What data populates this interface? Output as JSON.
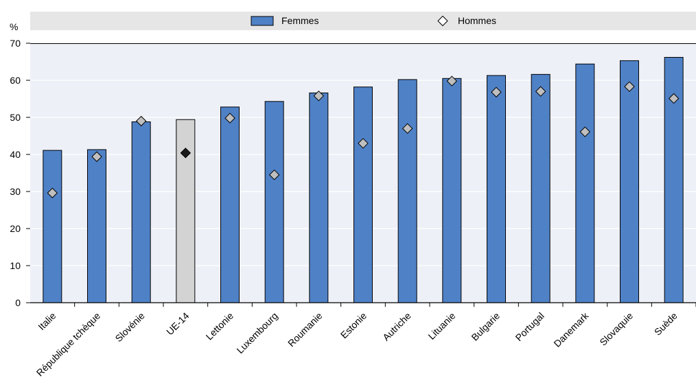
{
  "chart_data": {
    "type": "bar",
    "title": "",
    "xlabel": "",
    "ylabel": "%",
    "ylim": [
      0,
      70
    ],
    "yticks": [
      0,
      10,
      20,
      30,
      40,
      50,
      60,
      70
    ],
    "grid": "horizontal",
    "legend_position": "top",
    "categories": [
      "Italie",
      "République tchèque",
      "Slovénie",
      "UE-14",
      "Lettonie",
      "Luxembourg",
      "Roumanie",
      "Estonie",
      "Autriche",
      "Lituanie",
      "Bulgarie",
      "Portugal",
      "Danemark",
      "Slovaquie",
      "Suède"
    ],
    "highlight_category": "UE-14",
    "series": [
      {
        "name": "Femmes",
        "kind": "bar",
        "values": [
          41.1,
          41.3,
          48.8,
          49.4,
          52.8,
          54.3,
          56.6,
          58.2,
          60.2,
          60.5,
          61.3,
          61.6,
          64.4,
          65.3,
          66.2
        ]
      },
      {
        "name": "Hommes",
        "kind": "marker",
        "values": [
          29.6,
          39.4,
          49.0,
          40.4,
          49.8,
          34.5,
          55.8,
          43.0,
          47.0,
          59.8,
          56.8,
          57.0,
          46.1,
          58.3,
          55.1
        ]
      }
    ],
    "colors": {
      "bar": "#4f81c6",
      "bar_highlight": "#d3d3d3",
      "marker": "#bfbfbf",
      "marker_highlight": "#1a1a1a",
      "plot_bg": "#eef0f8",
      "legend_bg": "#e6e6e6",
      "grid": "#ffffff"
    }
  }
}
